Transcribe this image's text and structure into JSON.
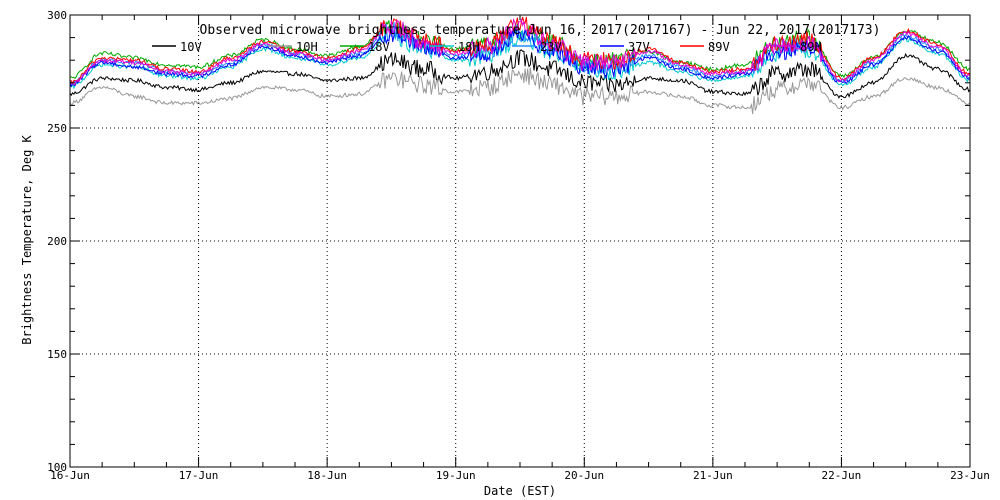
{
  "chart_data": {
    "type": "line",
    "title": "Observed microwave brightness temperature Jun 16, 2017(2017167) - Jun 22, 2017(2017173)",
    "xlabel": "Date (EST)",
    "ylabel": "Brightness Temperature, Deg K",
    "ylim": [
      100,
      300
    ],
    "yticks": [
      100,
      150,
      200,
      250,
      300
    ],
    "x_ticks": [
      "16-Jun",
      "17-Jun",
      "18-Jun",
      "19-Jun",
      "20-Jun",
      "21-Jun",
      "22-Jun",
      "23-Jun"
    ],
    "grid": true,
    "legend_position": "top",
    "base_x": [
      0,
      0.25,
      0.5,
      0.75,
      1.0,
      1.25,
      1.5,
      1.75,
      2.0,
      2.25,
      2.5,
      2.75,
      3.0,
      3.25,
      3.5,
      3.75,
      4.0,
      4.25,
      4.5,
      4.75,
      5.0,
      5.25,
      5.5,
      5.75,
      6.0,
      6.25,
      6.5,
      6.75,
      7.0
    ],
    "series": [
      {
        "name": "10V",
        "color": "#000000",
        "values": [
          265,
          272,
          271,
          268,
          267,
          270,
          275,
          274,
          271,
          272,
          280,
          276,
          272,
          275,
          281,
          276,
          270,
          269,
          272,
          271,
          266,
          265,
          274,
          276,
          264,
          270,
          282,
          276,
          267
        ]
      },
      {
        "name": "10H",
        "color": "#999999",
        "values": [
          261,
          268,
          264,
          261,
          261,
          263,
          268,
          267,
          264,
          265,
          272,
          269,
          266,
          268,
          274,
          269,
          264,
          264,
          266,
          264,
          260,
          259,
          267,
          270,
          259,
          264,
          272,
          268,
          261
        ]
      },
      {
        "name": "18V",
        "color": "#00aa00",
        "values": [
          272,
          283,
          281,
          278,
          277,
          282,
          289,
          285,
          282,
          286,
          295,
          289,
          285,
          287,
          293,
          288,
          280,
          280,
          284,
          279,
          276,
          278,
          288,
          290,
          273,
          281,
          293,
          288,
          276
        ]
      },
      {
        "name": "18H",
        "color": "#00cccc",
        "values": [
          268,
          278,
          277,
          273,
          272,
          277,
          285,
          281,
          278,
          281,
          291,
          285,
          280,
          282,
          290,
          284,
          276,
          275,
          279,
          275,
          271,
          273,
          283,
          285,
          269,
          277,
          289,
          283,
          271
        ]
      },
      {
        "name": "23V",
        "color": "#1e90ff",
        "values": [
          270,
          280,
          279,
          275,
          274,
          279,
          287,
          283,
          280,
          283,
          293,
          287,
          282,
          284,
          292,
          286,
          278,
          277,
          282,
          277,
          273,
          275,
          285,
          287,
          271,
          279,
          291,
          285,
          273
        ]
      },
      {
        "name": "37V",
        "color": "#0000ff",
        "values": [
          269,
          279,
          277,
          274,
          273,
          278,
          286,
          282,
          279,
          282,
          292,
          286,
          281,
          283,
          291,
          285,
          277,
          276,
          281,
          276,
          272,
          274,
          284,
          286,
          270,
          278,
          290,
          284,
          272
        ]
      },
      {
        "name": "89V",
        "color": "#ff0000",
        "values": [
          270,
          281,
          280,
          276,
          275,
          281,
          288,
          284,
          281,
          285,
          296,
          289,
          284,
          287,
          296,
          288,
          280,
          280,
          285,
          279,
          275,
          276,
          287,
          289,
          272,
          281,
          293,
          287,
          274
        ]
      },
      {
        "name": "89H",
        "color": "#dd00dd",
        "values": [
          269,
          280,
          279,
          275,
          274,
          280,
          287,
          283,
          280,
          284,
          295,
          288,
          283,
          286,
          295,
          287,
          279,
          279,
          284,
          278,
          274,
          275,
          286,
          288,
          271,
          280,
          292,
          286,
          273
        ]
      }
    ]
  }
}
